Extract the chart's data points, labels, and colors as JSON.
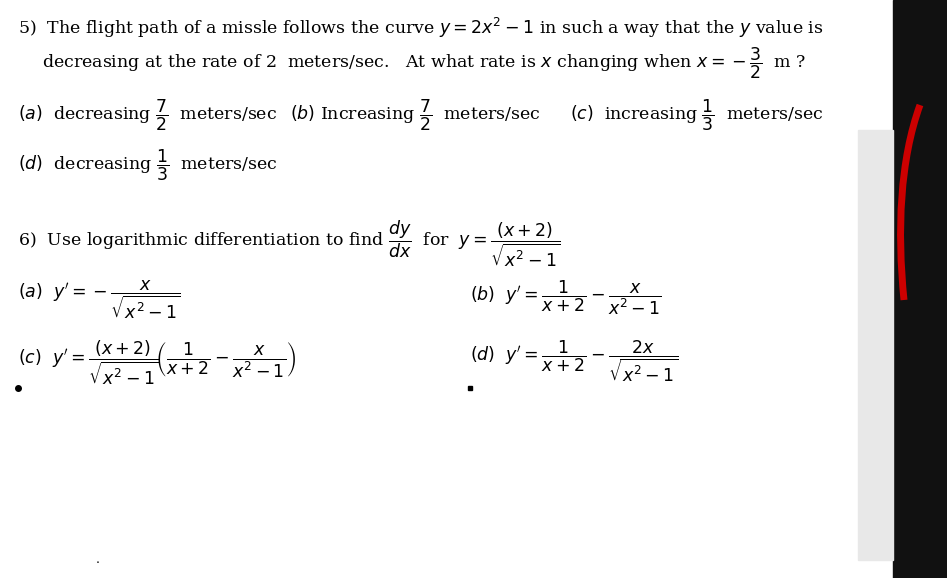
{
  "bg_color": "#ffffff",
  "text_color": "#000000",
  "fig_width": 9.47,
  "fig_height": 5.78,
  "dpi": 100,
  "red_line_color": "#cc0000",
  "right_bg_color": "#111111",
  "white_panel_color": "#f0f0f0",
  "q5_line1": "5)  The flight path of a missle follows the curve $y = 2x^2 -1$ in such a way that the $y$ value is",
  "q5_line2": "decreasing at the rate of 2  meters/sec.   At what rate is $x$ changing when $x = -\\dfrac{3}{2}$  m ?",
  "q5a": "$(a)$  decreasing $\\dfrac{7}{2}$  meters/sec",
  "q5b": "$(b)$ Increasing $\\dfrac{7}{2}$  meters/sec",
  "q5c": "$(c)$  increasing $\\dfrac{1}{3}$  meters/sec",
  "q5d": "$(d)$  decreasing $\\dfrac{1}{3}$  meters/sec",
  "q6_line": "6)  Use logarithmic differentiation to find $\\dfrac{dy}{dx}$  for  $y = \\dfrac{(x+2)}{\\sqrt{x^2-1}}$",
  "q6a": "$(a)$  $y^{\\prime}= -\\dfrac{x}{\\sqrt{x^2-1}}$",
  "q6b": "$(b)$  $y^{\\prime}= \\dfrac{1}{x+2} - \\dfrac{x}{x^2-1}$",
  "q6c": "$(c)$  $y^{\\prime}= \\dfrac{(x+2)}{\\sqrt{x^2-1}}\\!\\left(\\dfrac{1}{x+2} - \\dfrac{x}{x^2-1}\\right)$",
  "q6d": "$(d)$  $y^{\\prime}= \\dfrac{1}{x+2} - \\dfrac{2x}{\\sqrt{x^2-1}}$"
}
